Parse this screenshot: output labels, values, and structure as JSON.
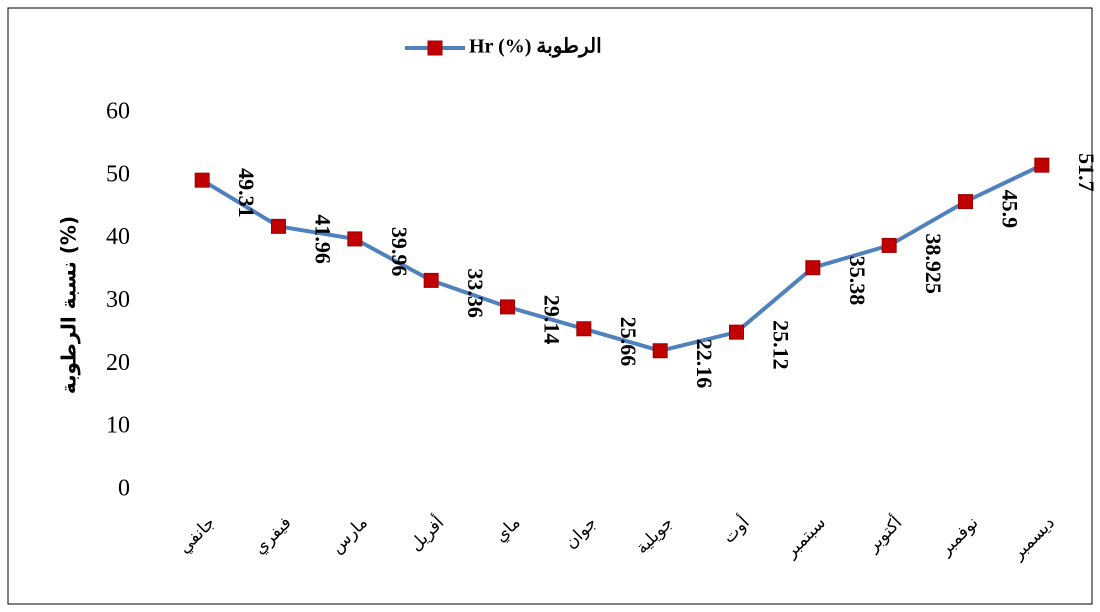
{
  "chart_data": {
    "type": "line",
    "y_label": "نسبة الرطوبة (%)",
    "categories": [
      "جانفي",
      "فيفري",
      "مارس",
      "أفريل",
      "ماي",
      "جوان",
      "جويلية",
      "أوت",
      "سبتمبر",
      "أكتوبر",
      "نوفمبر",
      "ديسمبر"
    ],
    "series": [
      {
        "name": "Hr (%) الرطوبة",
        "color": "#4f81bd",
        "marker_color": "#c00000",
        "values": [
          49.31,
          41.96,
          39.96,
          33.36,
          29.14,
          25.66,
          22.16,
          25.12,
          35.38,
          38.925,
          45.9,
          51.7
        ]
      }
    ],
    "ylim": [
      0,
      60
    ],
    "yticks": [
      0,
      10,
      20,
      30,
      40,
      50,
      60
    ],
    "grid": false,
    "legend": "top"
  }
}
